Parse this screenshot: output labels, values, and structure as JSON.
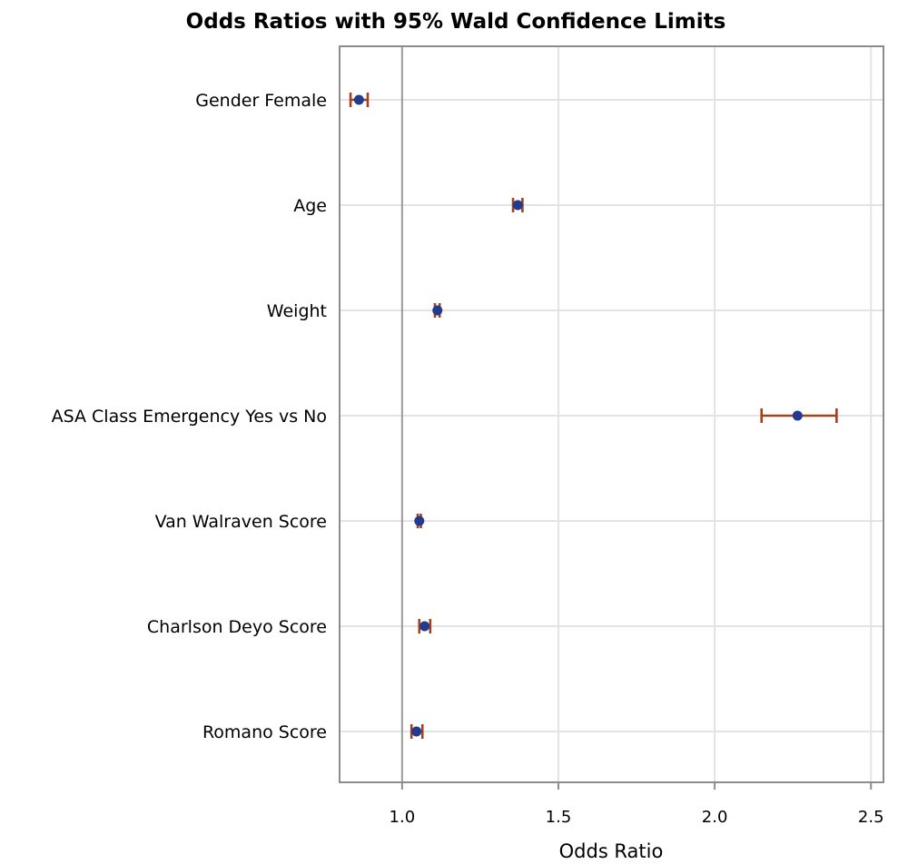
{
  "chart_data": {
    "type": "scatter",
    "title": "Odds Ratios with 95% Wald Confidence Limits",
    "xlabel": "Odds Ratio",
    "ylabel": "",
    "xlim": [
      0.8,
      2.54
    ],
    "xticks": [
      1.0,
      1.5,
      2.0,
      2.5
    ],
    "xtick_labels": [
      "1.0",
      "1.5",
      "2.0",
      "2.5"
    ],
    "reference_line": 1.0,
    "grid": true,
    "categories": [
      "Gender  Female",
      "Age",
      "Weight",
      "ASA Class Emergency  Yes vs No",
      "Van Walraven Score",
      "Charlson Deyo Score",
      "Romano Score"
    ],
    "estimates": [
      0.862,
      1.37,
      1.113,
      2.265,
      1.055,
      1.072,
      1.046
    ],
    "lower": [
      0.835,
      1.355,
      1.105,
      2.15,
      1.05,
      1.055,
      1.03
    ],
    "upper": [
      0.89,
      1.385,
      1.12,
      2.39,
      1.06,
      1.09,
      1.065
    ],
    "point_color": "#233b8f",
    "ci_color": "#a0421c",
    "grid_color": "#e3e3e3",
    "ref_color": "#9a9a9a",
    "frame_color": "#8c8c8c"
  }
}
